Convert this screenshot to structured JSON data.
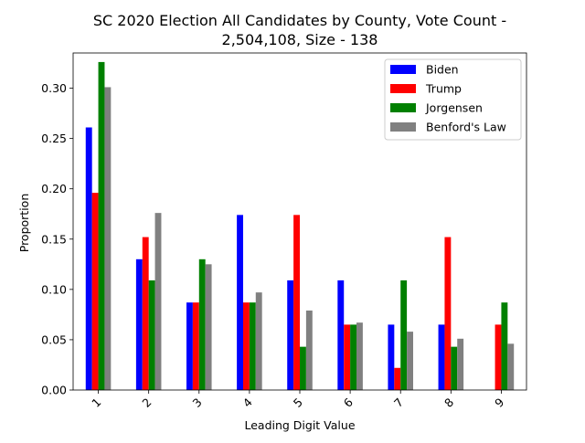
{
  "chart_data": {
    "type": "bar",
    "title_lines": [
      "SC 2020 Election All Candidates by County, Vote Count -",
      "2,504,108, Size - 138"
    ],
    "xlabel": "Leading Digit Value",
    "ylabel": "Proportion",
    "categories": [
      "1",
      "2",
      "3",
      "4",
      "5",
      "6",
      "7",
      "8",
      "9"
    ],
    "ylim": [
      0,
      0.335
    ],
    "yticks": [
      0.0,
      0.05,
      0.1,
      0.15,
      0.2,
      0.25,
      0.3
    ],
    "ytick_labels": [
      "0.00",
      "0.05",
      "0.10",
      "0.15",
      "0.20",
      "0.25",
      "0.30"
    ],
    "grid": false,
    "legend_position": "top-right",
    "series": [
      {
        "name": "Biden",
        "color": "#0000ff",
        "values": [
          0.261,
          0.13,
          0.087,
          0.174,
          0.109,
          0.109,
          0.065,
          0.065,
          0.0
        ]
      },
      {
        "name": "Trump",
        "color": "#ff0000",
        "values": [
          0.196,
          0.152,
          0.087,
          0.087,
          0.174,
          0.065,
          0.022,
          0.152,
          0.065
        ]
      },
      {
        "name": "Jorgensen",
        "color": "#008000",
        "values": [
          0.326,
          0.109,
          0.13,
          0.087,
          0.043,
          0.065,
          0.109,
          0.043,
          0.087
        ]
      },
      {
        "name": "Benford's Law",
        "color": "#808080",
        "values": [
          0.301,
          0.176,
          0.125,
          0.097,
          0.079,
          0.067,
          0.058,
          0.051,
          0.046
        ]
      }
    ]
  }
}
